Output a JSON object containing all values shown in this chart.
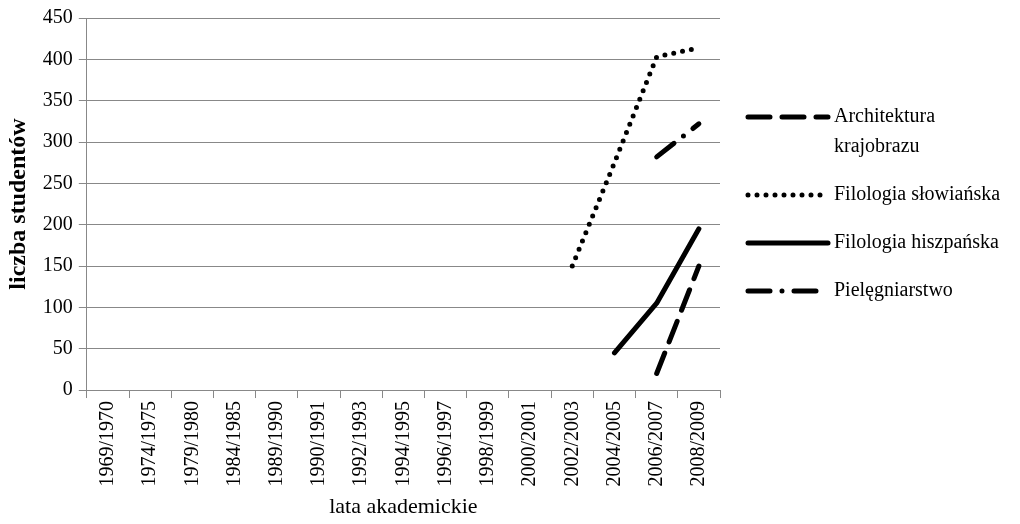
{
  "chart_data": {
    "type": "line",
    "xlabel": "lata akademickie",
    "ylabel": "liczba studentów",
    "categories": [
      "1969/1970",
      "1974/1975",
      "1979/1980",
      "1984/1985",
      "1989/1990",
      "1990/1991",
      "1992/1993",
      "1994/1995",
      "1996/1997",
      "1998/1999",
      "2000/2001",
      "2002/2003",
      "2004/2005",
      "2006/2007",
      "2008/2009"
    ],
    "series": [
      {
        "name": "Architektura krajobrazu",
        "color": "#000000",
        "line_style": "dashed",
        "values": [
          null,
          null,
          null,
          null,
          null,
          null,
          null,
          null,
          null,
          null,
          null,
          null,
          null,
          20,
          150
        ]
      },
      {
        "name": "Filologia słowiańska",
        "color": "#000000",
        "line_style": "dotted",
        "values": [
          null,
          null,
          null,
          null,
          null,
          null,
          null,
          null,
          null,
          null,
          null,
          150,
          275,
          403,
          414
        ]
      },
      {
        "name": "Filologia hiszpańska",
        "color": "#000000",
        "line_style": "solid",
        "values": [
          null,
          null,
          null,
          null,
          null,
          null,
          null,
          null,
          null,
          null,
          null,
          null,
          45,
          105,
          195
        ]
      },
      {
        "name": "Pielęgniarstwo",
        "color": "#000000",
        "line_style": "dashdot",
        "values": [
          null,
          null,
          null,
          null,
          null,
          null,
          null,
          null,
          null,
          null,
          null,
          null,
          null,
          282,
          322
        ]
      }
    ],
    "ylim": [
      0,
      450
    ],
    "yticks": [
      0,
      50,
      100,
      150,
      200,
      250,
      300,
      350,
      400,
      450
    ],
    "grid": "y",
    "legend": "right",
    "marker": "none"
  }
}
